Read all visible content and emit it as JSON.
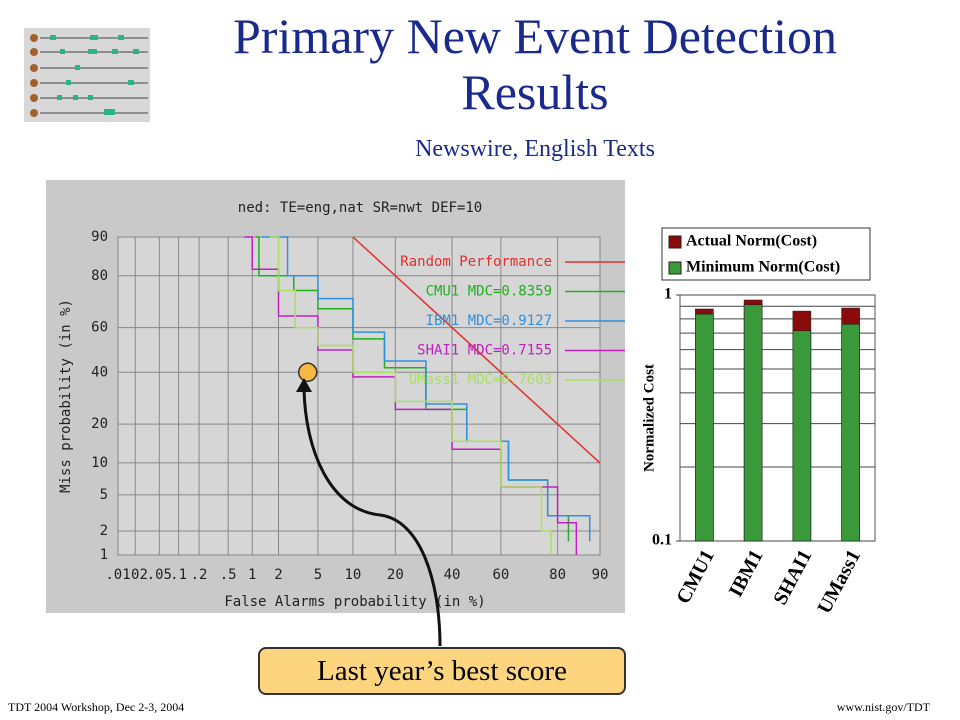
{
  "title": "Primary New Event Detection Results",
  "subtitle": "Newswire, English Texts",
  "callout": "Last year’s best score",
  "footer_left": "TDT 2004 Workshop, Dec 2-3, 2004",
  "footer_right": "www.nist.gov/TDT",
  "chart_data": [
    {
      "type": "line",
      "title": "ned: TE=eng,nat SR=nwt DEF=10",
      "x_label": "False Alarms probability (in %)",
      "y_label": "Miss probability (in %)",
      "scale": "probit",
      "grid": true,
      "legend": "upper right",
      "xlim": [
        0.01,
        90
      ],
      "ylim": [
        1,
        90
      ],
      "xticks": [
        {
          "value": 0.01,
          "label": ".01"
        },
        {
          "value": 0.02,
          "label": ".02"
        },
        {
          "value": 0.05,
          "label": ".05"
        },
        {
          "value": 0.1,
          "label": ".1"
        },
        {
          "value": 0.2,
          "label": ".2"
        },
        {
          "value": 0.5,
          "label": ".5"
        },
        1,
        2,
        5,
        10,
        20,
        40,
        60,
        80,
        90
      ],
      "yticks": [
        1,
        2,
        5,
        10,
        20,
        40,
        60,
        80,
        90
      ],
      "series": [
        {
          "name": "Random Performance",
          "color": "#e03030",
          "x": [
            10,
            90
          ],
          "values": [
            90,
            10
          ]
        },
        {
          "name": "CMU1 MDC=0.8359",
          "color": "#20b020",
          "x": [
            1.1,
            1.2,
            2.9,
            5,
            10,
            17,
            30,
            46,
            63,
            77,
            83
          ],
          "values": [
            90,
            80,
            75,
            68,
            55,
            42,
            25,
            15,
            7,
            3,
            1.5
          ]
        },
        {
          "name": "IBM1 MDC=0.9127",
          "color": "#3090e0",
          "x": [
            1.3,
            2.5,
            5,
            10,
            17,
            30,
            46,
            63,
            77,
            88
          ],
          "values": [
            90,
            80,
            72,
            58,
            45,
            27,
            15,
            7,
            3,
            1.5
          ]
        },
        {
          "name": "SHAI1 MDC=0.7155",
          "color": "#c020c0",
          "x": [
            0.8,
            1,
            2,
            5,
            10,
            20,
            40,
            60,
            80,
            85
          ],
          "values": [
            90,
            82,
            65,
            50,
            38,
            25,
            13,
            6,
            2.5,
            1
          ]
        },
        {
          "name": "UMass1 MDC=0.7603",
          "color": "#a8e060",
          "x": [
            1.6,
            2,
            3,
            5,
            10,
            20,
            40,
            60,
            75,
            78
          ],
          "values": [
            90,
            75,
            60,
            52,
            40,
            28,
            15,
            6,
            2,
            1
          ]
        }
      ],
      "highlight": {
        "x": 4,
        "y": 40,
        "color": "#f5b942"
      }
    },
    {
      "type": "bar",
      "overlay": true,
      "log_scale": true,
      "grid": true,
      "legend": "upper left",
      "y_label": "Normalized Cost",
      "categories": [
        "CMU1",
        "IBM1",
        "SHAI1",
        "UMass1"
      ],
      "ylim": [
        0.1,
        1
      ],
      "yticks": [
        0.1,
        1
      ],
      "minor_yticks": [
        0.2,
        0.3,
        0.4,
        0.5,
        0.6,
        0.7,
        0.8,
        0.9
      ],
      "series": [
        {
          "name": "Actual Norm(Cost)",
          "color": "#8b0a0a",
          "values": [
            0.877,
            0.954,
            0.86,
            0.885
          ]
        },
        {
          "name": "Minimum Norm(Cost)",
          "color": "#3a9a3a",
          "values": [
            0.8359,
            0.9127,
            0.7155,
            0.7603
          ]
        }
      ]
    }
  ]
}
